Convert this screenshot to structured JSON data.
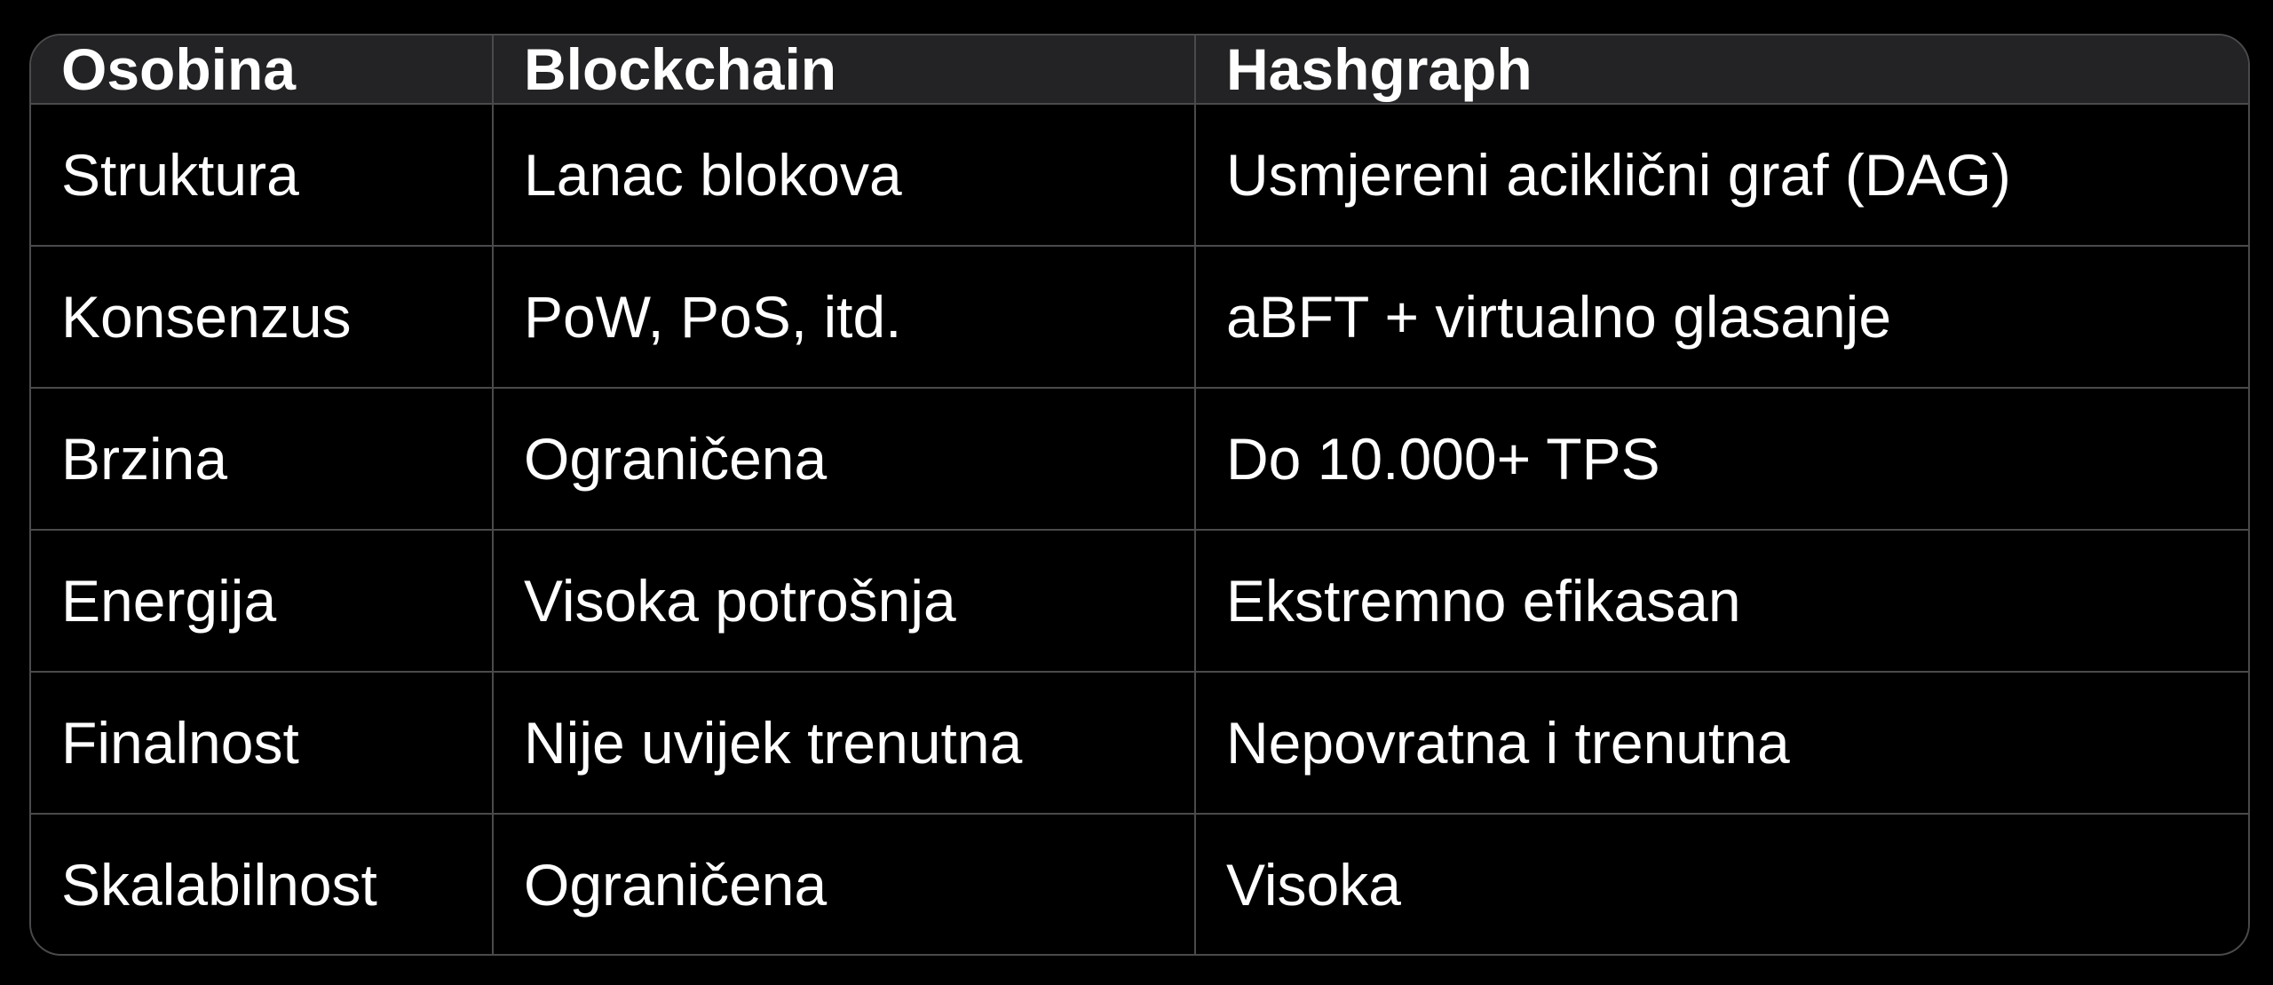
{
  "table": {
    "headers": [
      "Osobina",
      "Blockchain",
      "Hashgraph"
    ],
    "rows": [
      [
        "Struktura",
        "Lanac blokova",
        "Usmjereni aciklični graf (DAG)"
      ],
      [
        "Konsenzus",
        "PoW, PoS, itd.",
        "aBFT + virtualno glasanje"
      ],
      [
        "Brzina",
        "Ograničena",
        "Do 10.000+ TPS"
      ],
      [
        "Energija",
        "Visoka potrošnja",
        "Ekstremno efikasan"
      ],
      [
        "Finalnost",
        "Nije uvijek trenutna",
        "Nepovratna i trenutna"
      ],
      [
        "Skalabilnost",
        "Ograničena",
        "Visoka"
      ]
    ]
  },
  "colors": {
    "header_bg": "#232325",
    "border": "#4a4a4c",
    "background": "#000000",
    "text": "#ffffff"
  }
}
